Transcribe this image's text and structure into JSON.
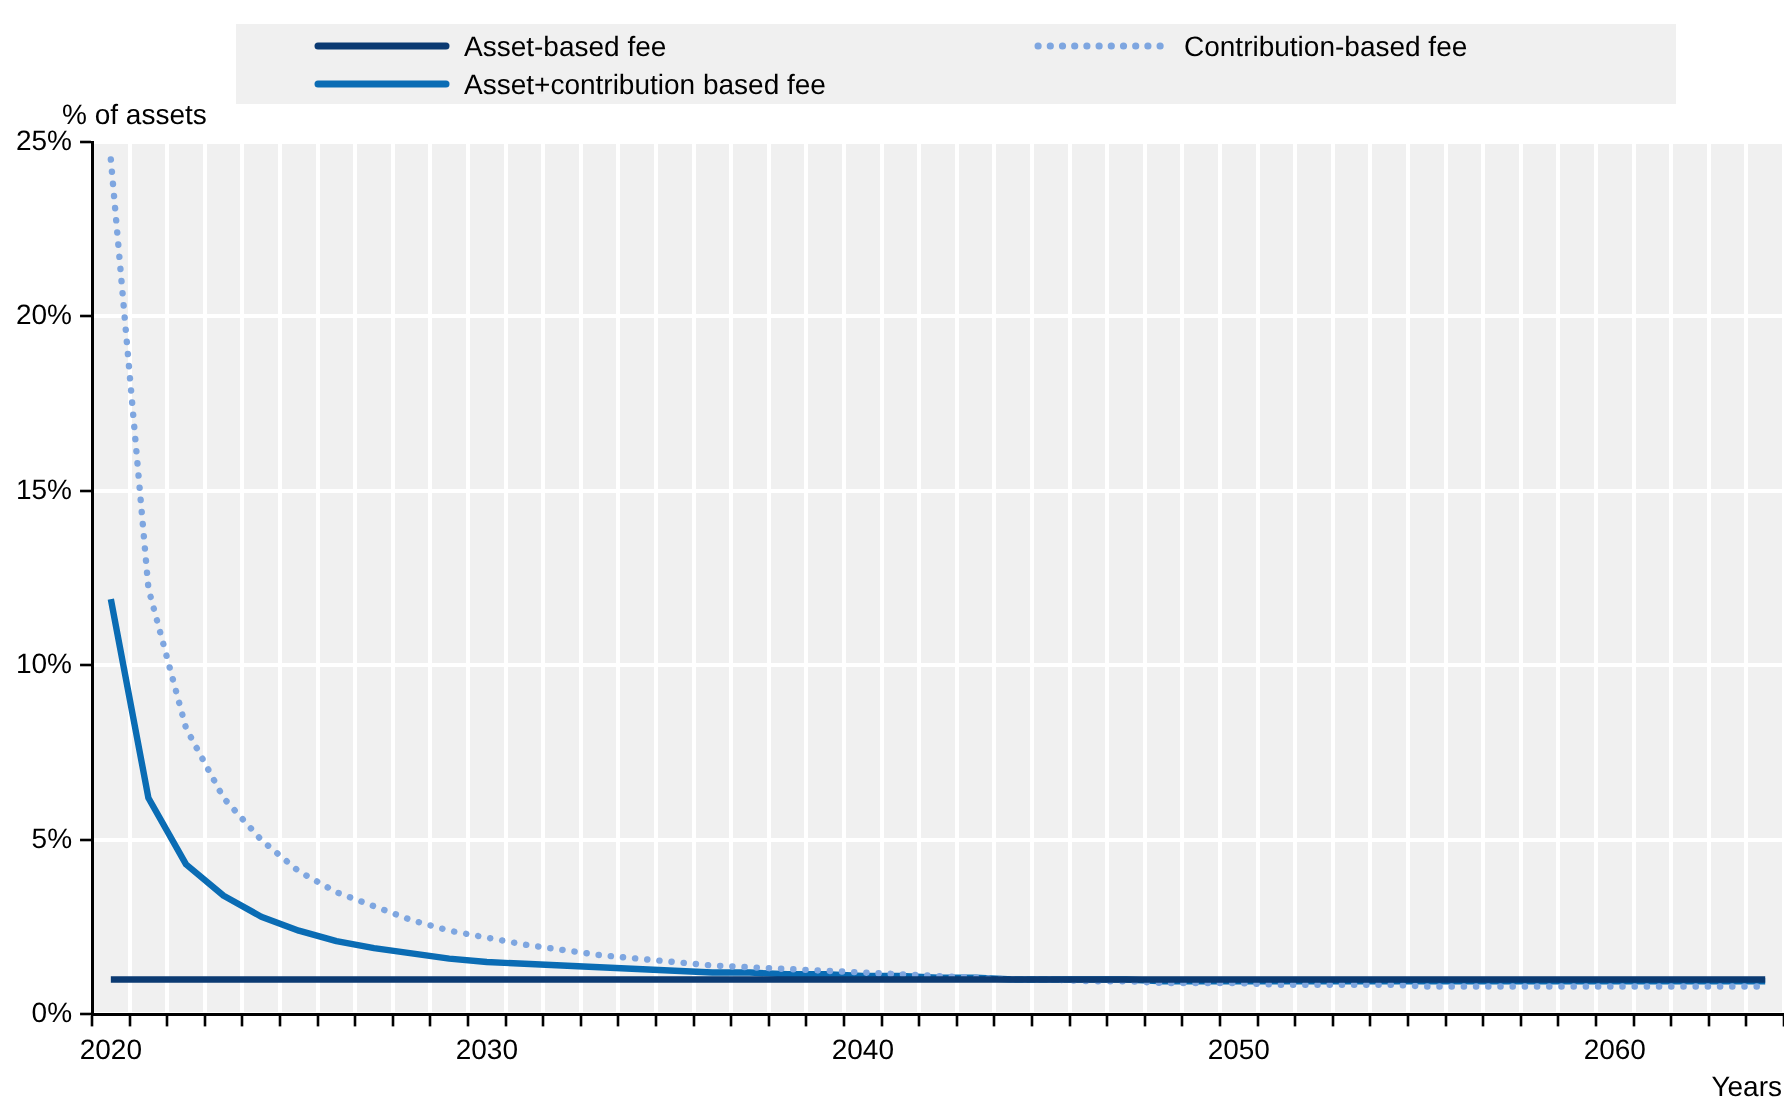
{
  "chart_data": {
    "type": "line",
    "xlabel": "Years",
    "ylabel": "% of assets",
    "categories": [
      "2020",
      null,
      null,
      null,
      null,
      null,
      null,
      null,
      null,
      null,
      "2030",
      null,
      null,
      null,
      null,
      null,
      null,
      null,
      null,
      null,
      "2040",
      null,
      null,
      null,
      null,
      null,
      null,
      null,
      null,
      null,
      "2050",
      null,
      null,
      null,
      null,
      null,
      null,
      null,
      null,
      null,
      "2060",
      null,
      null,
      null,
      null
    ],
    "series": [
      {
        "name": "Asset-based fee",
        "color": "#0b3a72",
        "line_style": "solid",
        "values": [
          1.0,
          1.0,
          1.0,
          1.0,
          1.0,
          1.0,
          1.0,
          1.0,
          1.0,
          1.0,
          1.0,
          1.0,
          1.0,
          1.0,
          1.0,
          1.0,
          1.0,
          1.0,
          1.0,
          1.0,
          1.0,
          1.0,
          1.0,
          1.0,
          1.0,
          1.0,
          1.0,
          1.0,
          1.0,
          1.0,
          1.0,
          1.0,
          1.0,
          1.0,
          1.0,
          1.0,
          1.0,
          1.0,
          1.0,
          1.0,
          1.0,
          1.0,
          1.0,
          1.0,
          1.0
        ]
      },
      {
        "name": "Contribution-based fee",
        "color": "#7ea6e0",
        "line_style": "dotted",
        "values": [
          24.5,
          12.2,
          8.2,
          6.2,
          5.0,
          4.1,
          3.5,
          3.1,
          2.7,
          2.4,
          2.2,
          2.0,
          1.85,
          1.7,
          1.6,
          1.5,
          1.4,
          1.35,
          1.3,
          1.25,
          1.2,
          1.15,
          1.1,
          1.05,
          1.0,
          1.0,
          0.95,
          0.95,
          0.9,
          0.9,
          0.9,
          0.85,
          0.85,
          0.85,
          0.85,
          0.8,
          0.8,
          0.8,
          0.8,
          0.8,
          0.8,
          0.8,
          0.8,
          0.8,
          0.8
        ]
      },
      {
        "name": "Asset+contribution based fee",
        "color": "#0a6cb4",
        "line_style": "solid",
        "values": [
          11.9,
          6.2,
          4.3,
          3.4,
          2.8,
          2.4,
          2.1,
          1.9,
          1.75,
          1.6,
          1.5,
          1.45,
          1.4,
          1.35,
          1.3,
          1.25,
          1.2,
          1.2,
          1.15,
          1.15,
          1.1,
          1.1,
          1.05,
          1.05,
          1.0,
          1.0,
          1.0,
          1.0,
          0.95,
          0.95,
          0.95,
          0.95,
          0.95,
          0.95,
          0.95,
          0.95,
          0.95,
          0.95,
          0.95,
          0.95,
          0.95,
          0.95,
          0.95,
          0.95,
          0.95
        ]
      }
    ],
    "ylim": [
      0,
      25
    ],
    "yticks": [
      {
        "value": 0,
        "label": "0%"
      },
      {
        "value": 5,
        "label": "5%"
      },
      {
        "value": 10,
        "label": "10%"
      },
      {
        "value": 15,
        "label": "15%"
      },
      {
        "value": 20,
        "label": "20%"
      },
      {
        "value": 25,
        "label": "25%"
      }
    ],
    "grid": true,
    "legend": "top",
    "marker": "none"
  }
}
